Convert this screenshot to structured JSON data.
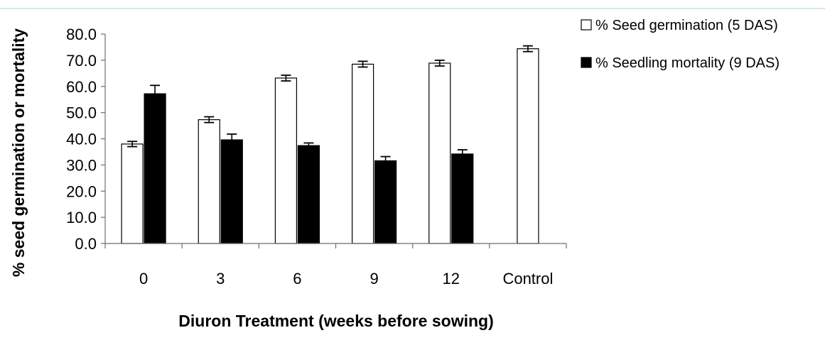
{
  "chart_data": {
    "type": "bar",
    "title": "",
    "xlabel": "Diuron Treatment (weeks before sowing)",
    "ylabel": "% seed  germination or mortality",
    "categories": [
      "0",
      "3",
      "6",
      "9",
      "12",
      "Control"
    ],
    "ylim": [
      0,
      80
    ],
    "yticks": [
      "0.0",
      "10.0",
      "20.0",
      "30.0",
      "40.0",
      "50.0",
      "60.0",
      "70.0",
      "80.0"
    ],
    "grid": false,
    "legend_position": "top-right",
    "series": [
      {
        "name": "% Seed germination (5 DAS)",
        "fill": "#ffffff",
        "values": [
          38.0,
          47.3,
          63.2,
          68.5,
          68.9,
          74.4
        ],
        "errors": [
          1.0,
          1.1,
          1.1,
          1.1,
          1.1,
          1.1
        ]
      },
      {
        "name": "% Seedling mortality (9 DAS)",
        "fill": "#000000",
        "values": [
          57.2,
          39.6,
          37.4,
          31.6,
          34.2,
          null
        ],
        "errors": [
          3.2,
          2.2,
          1.0,
          1.6,
          1.6,
          null
        ]
      }
    ]
  }
}
